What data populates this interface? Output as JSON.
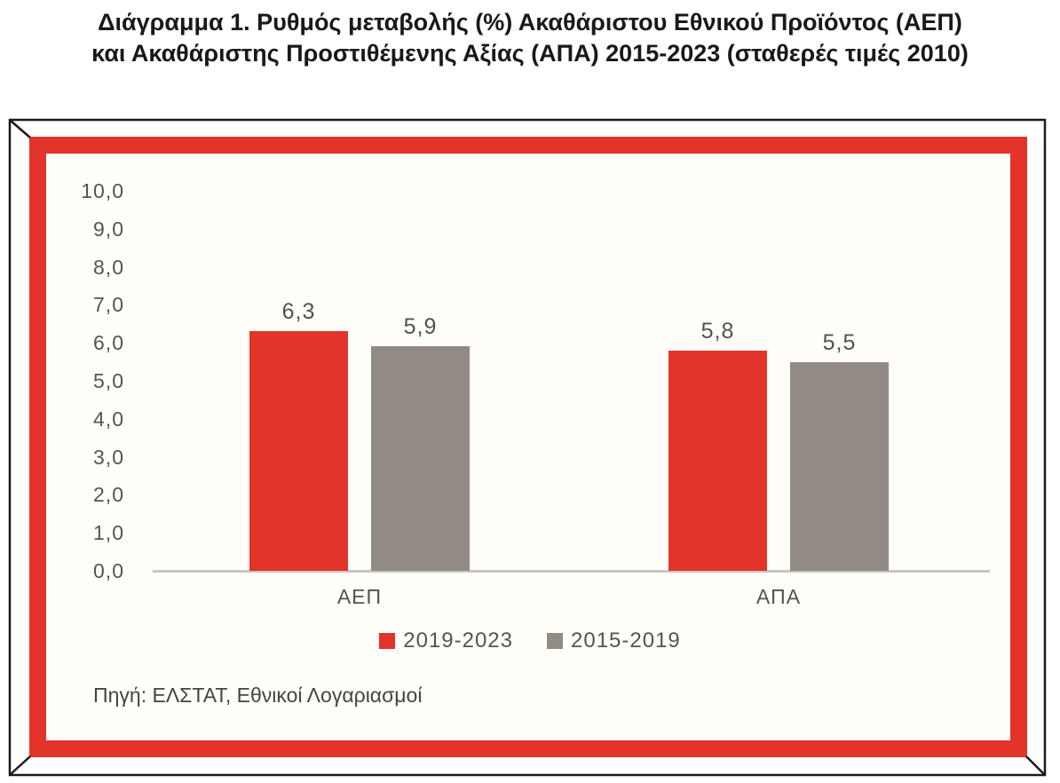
{
  "title": {
    "line1": "Διάγραμμα 1. Ρυθμός μεταβολής (%) Ακαθάριστου Εθνικού Προϊόντος (ΑΕΠ)",
    "line2": "και Ακαθάριστης Προστιθέμενης Αξίας (ΑΠΑ) 2015-2023 (σταθερές τιμές 2010)"
  },
  "chart_data": {
    "type": "bar",
    "categories": [
      "ΑΕΠ",
      "ΑΠΑ"
    ],
    "series": [
      {
        "name": "2019-2023",
        "color": "#e2342b",
        "values": [
          6.3,
          5.8
        ],
        "value_labels": [
          "6,3",
          "5,8"
        ]
      },
      {
        "name": "2015-2019",
        "color": "#918a85",
        "values": [
          5.9,
          5.5
        ],
        "value_labels": [
          "5,9",
          "5,5"
        ]
      }
    ],
    "ylim": [
      0,
      10
    ],
    "ytick_step": 1,
    "ytick_labels": [
      "10,0",
      "9,0",
      "8,0",
      "7,0",
      "6,0",
      "5,0",
      "4,0",
      "3,0",
      "2,0",
      "1,0",
      "0,0"
    ],
    "decimal_separator": ",",
    "grid": false,
    "legend_position": "bottom"
  },
  "source_note": "Πηγή: ΕΛΣΤΑΤ, Εθνικοί Λογαριασμοί",
  "frame": {
    "border_color": "#e2342b",
    "outline_color": "#1a1a1a"
  }
}
